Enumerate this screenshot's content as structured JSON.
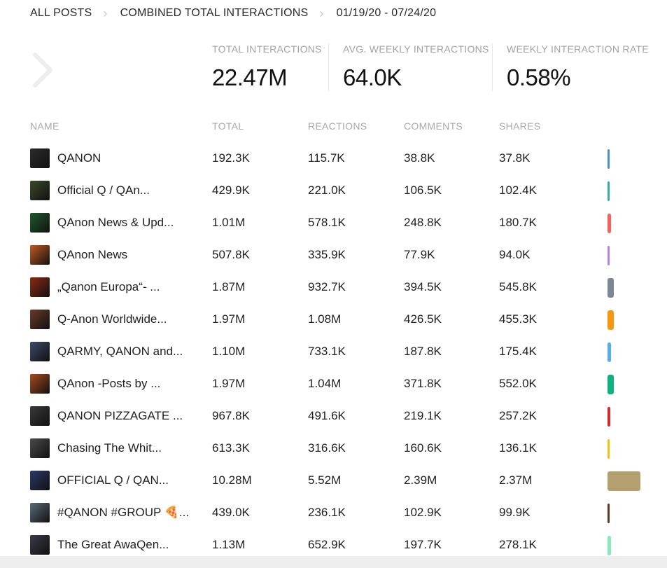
{
  "breadcrumb": {
    "all_posts": "ALL POSTS",
    "section": "COMBINED TOTAL INTERACTIONS",
    "date_range": "01/19/20 - 07/24/20"
  },
  "stats": [
    {
      "label": "TOTAL INTERACTIONS",
      "value": "22.47M"
    },
    {
      "label": "AVG. WEEKLY INTERACTIONS",
      "value": "64.0K"
    },
    {
      "label": "WEEKLY INTERACTION RATE",
      "value": "0.58%"
    }
  ],
  "columns": {
    "name": "NAME",
    "total": "TOTAL",
    "reactions": "REACTIONS",
    "comments": "COMMENTS",
    "shares": "SHARES"
  },
  "rows": [
    {
      "name": "QANON",
      "total": "192.3K",
      "reactions": "115.7K",
      "comments": "38.8K",
      "shares": "37.8K",
      "color": "#4a90c8",
      "share": 0.0086,
      "avatar_color": "#2b2b2b"
    },
    {
      "name": "Official Q / QAn...",
      "total": "429.9K",
      "reactions": "221.0K",
      "comments": "106.5K",
      "shares": "102.4K",
      "color": "#3aaaa8",
      "share": 0.0191,
      "avatar_color": "#3b4a2a"
    },
    {
      "name": "QAnon News & Upd...",
      "total": "1.01M",
      "reactions": "578.1K",
      "comments": "248.8K",
      "shares": "180.7K",
      "color": "#f06262",
      "share": 0.0449,
      "avatar_color": "#1e5a2c"
    },
    {
      "name": "QAnon News",
      "total": "507.8K",
      "reactions": "335.9K",
      "comments": "77.9K",
      "shares": "94.0K",
      "color": "#b486e8",
      "share": 0.0226,
      "avatar_color": "#c25a1e"
    },
    {
      "name": "„Qanon Europa“- ...",
      "total": "1.87M",
      "reactions": "932.7K",
      "comments": "394.5K",
      "shares": "545.8K",
      "color": "#7b8794",
      "share": 0.0832,
      "avatar_color": "#8a2a12"
    },
    {
      "name": "Q-Anon Worldwide...",
      "total": "1.97M",
      "reactions": "1.08M",
      "comments": "426.5K",
      "shares": "455.3K",
      "color": "#f7960f",
      "share": 0.0877,
      "avatar_color": "#6b3a2a"
    },
    {
      "name": "QARMY, QANON and...",
      "total": "1.10M",
      "reactions": "733.1K",
      "comments": "187.8K",
      "shares": "175.4K",
      "color": "#55aee6",
      "share": 0.049,
      "avatar_color": "#3c4a6a"
    },
    {
      "name": "QAnon -Posts by ...",
      "total": "1.97M",
      "reactions": "1.04M",
      "comments": "371.8K",
      "shares": "552.0K",
      "color": "#0fb081",
      "share": 0.0877,
      "avatar_color": "#a84a1a"
    },
    {
      "name": "QANON PIZZAGATE ...",
      "total": "967.8K",
      "reactions": "491.6K",
      "comments": "219.1K",
      "shares": "257.2K",
      "color": "#d42b2b",
      "share": 0.0431,
      "avatar_color": "#3a3a3a"
    },
    {
      "name": "Chasing The Whit...",
      "total": "613.3K",
      "reactions": "316.6K",
      "comments": "160.6K",
      "shares": "136.1K",
      "color": "#f2c312",
      "share": 0.0273,
      "avatar_color": "#4a4a4a"
    },
    {
      "name": "OFFICIAL Q / QAN...",
      "total": "10.28M",
      "reactions": "5.52M",
      "comments": "2.39M",
      "shares": "2.37M",
      "color": "#b3a06e",
      "share": 0.4575,
      "avatar_color": "#2a3a6a"
    },
    {
      "name": "#QANON #GROUP 🍕...",
      "total": "439.0K",
      "reactions": "236.1K",
      "comments": "102.9K",
      "shares": "99.9K",
      "color": "#5a3a22",
      "share": 0.0195,
      "avatar_color": "#5a6a7a"
    },
    {
      "name": "The Great AwaQen...",
      "total": "1.13M",
      "reactions": "652.9K",
      "comments": "197.7K",
      "shares": "278.1K",
      "color": "#8ee6bb",
      "share": 0.0503,
      "avatar_color": "#3a3a4a"
    }
  ]
}
